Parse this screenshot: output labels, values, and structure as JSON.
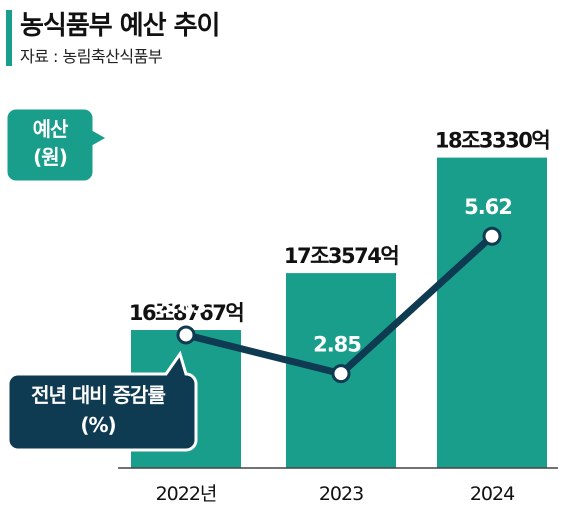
{
  "header": {
    "title": "농식품부 예산 추이",
    "source": "자료 : 농림축산식품부"
  },
  "legend": {
    "budget_line1": "예산",
    "budget_line2": "(원)",
    "growth_line1": "전년 대비 증감률",
    "growth_line2": "(%)"
  },
  "colors": {
    "bar": "#1a9e8c",
    "line": "#0e3a52"
  },
  "chart_data": {
    "type": "bar",
    "categories": [
      "2022년",
      "2023",
      "2024"
    ],
    "series": [
      {
        "name": "예산 (원)",
        "type": "bar",
        "values": [
          168767,
          173574,
          183330
        ],
        "labels": [
          "16조8767억",
          "17조3574억",
          "18조3330억"
        ]
      },
      {
        "name": "전년 대비 증감률 (%)",
        "type": "line",
        "values": [
          3.63,
          2.85,
          5.62
        ],
        "labels": [
          "3.63",
          "2.85",
          "5.62"
        ]
      }
    ]
  }
}
